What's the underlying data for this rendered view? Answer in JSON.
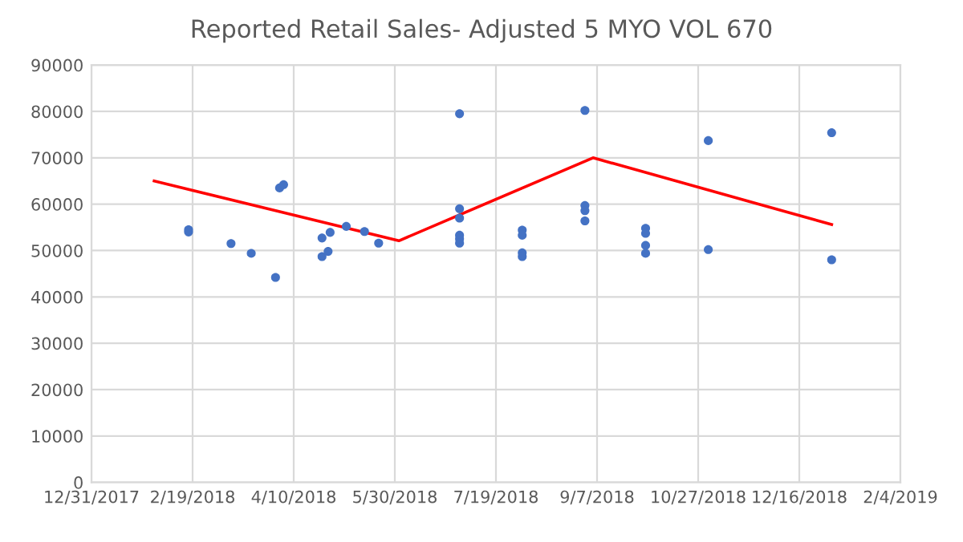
{
  "chart_data": {
    "type": "scatter",
    "title": "Reported Retail Sales- Adjusted 5 MYO VOL 670",
    "series": [
      {
        "color": "#4472c4",
        "marker": "circle",
        "x": [
          "2018-02-17",
          "2018-02-17",
          "2018-03-10",
          "2018-03-20",
          "2018-04-01",
          "2018-04-03",
          "2018-04-05",
          "2018-04-24",
          "2018-04-24",
          "2018-04-27",
          "2018-04-28",
          "2018-05-06",
          "2018-05-15",
          "2018-05-22",
          "2018-07-01",
          "2018-07-01",
          "2018-07-01",
          "2018-07-01",
          "2018-07-01",
          "2018-07-01",
          "2018-08-01",
          "2018-08-01",
          "2018-08-01",
          "2018-08-01",
          "2018-09-01",
          "2018-09-01",
          "2018-09-01",
          "2018-09-01",
          "2018-10-01",
          "2018-10-01",
          "2018-10-01",
          "2018-10-01",
          "2018-11-01",
          "2018-11-01",
          "2019-01-01",
          "2019-01-01"
        ],
        "values": [
          54500,
          54000,
          51500,
          49400,
          44200,
          63500,
          64200,
          52700,
          48700,
          49800,
          53900,
          55200,
          54100,
          51600,
          79500,
          59000,
          57000,
          53300,
          52500,
          51600,
          54400,
          53300,
          49500,
          48700,
          80200,
          59700,
          58600,
          56400,
          54800,
          53700,
          51100,
          49400,
          73700,
          50200,
          75400,
          48000
        ]
      },
      {
        "type": "line",
        "color": "#ff0000",
        "marker": "none",
        "line_style": "solid",
        "x": [
          "2018-01-31",
          "2018-06-01",
          "2018-09-05",
          "2019-01-01"
        ],
        "values": [
          65000,
          52100,
          70000,
          55600
        ]
      }
    ],
    "xlim": [
      "2017-12-31",
      "2019-02-04"
    ],
    "xticks": [
      {
        "value": "2017-12-31",
        "label": "12/31/2017"
      },
      {
        "value": "2018-02-19",
        "label": "2/19/2018"
      },
      {
        "value": "2018-04-10",
        "label": "4/10/2018"
      },
      {
        "value": "2018-05-30",
        "label": "5/30/2018"
      },
      {
        "value": "2018-07-19",
        "label": "7/19/2018"
      },
      {
        "value": "2018-09-07",
        "label": "9/7/2018"
      },
      {
        "value": "2018-10-27",
        "label": "10/27/2018"
      },
      {
        "value": "2018-12-16",
        "label": "12/16/2018"
      },
      {
        "value": "2019-02-04",
        "label": "2/4/2019"
      }
    ],
    "ylim": [
      0,
      90000
    ],
    "yticks": [
      0,
      10000,
      20000,
      30000,
      40000,
      50000,
      60000,
      70000,
      80000,
      90000
    ],
    "grid": true,
    "legend": false
  }
}
